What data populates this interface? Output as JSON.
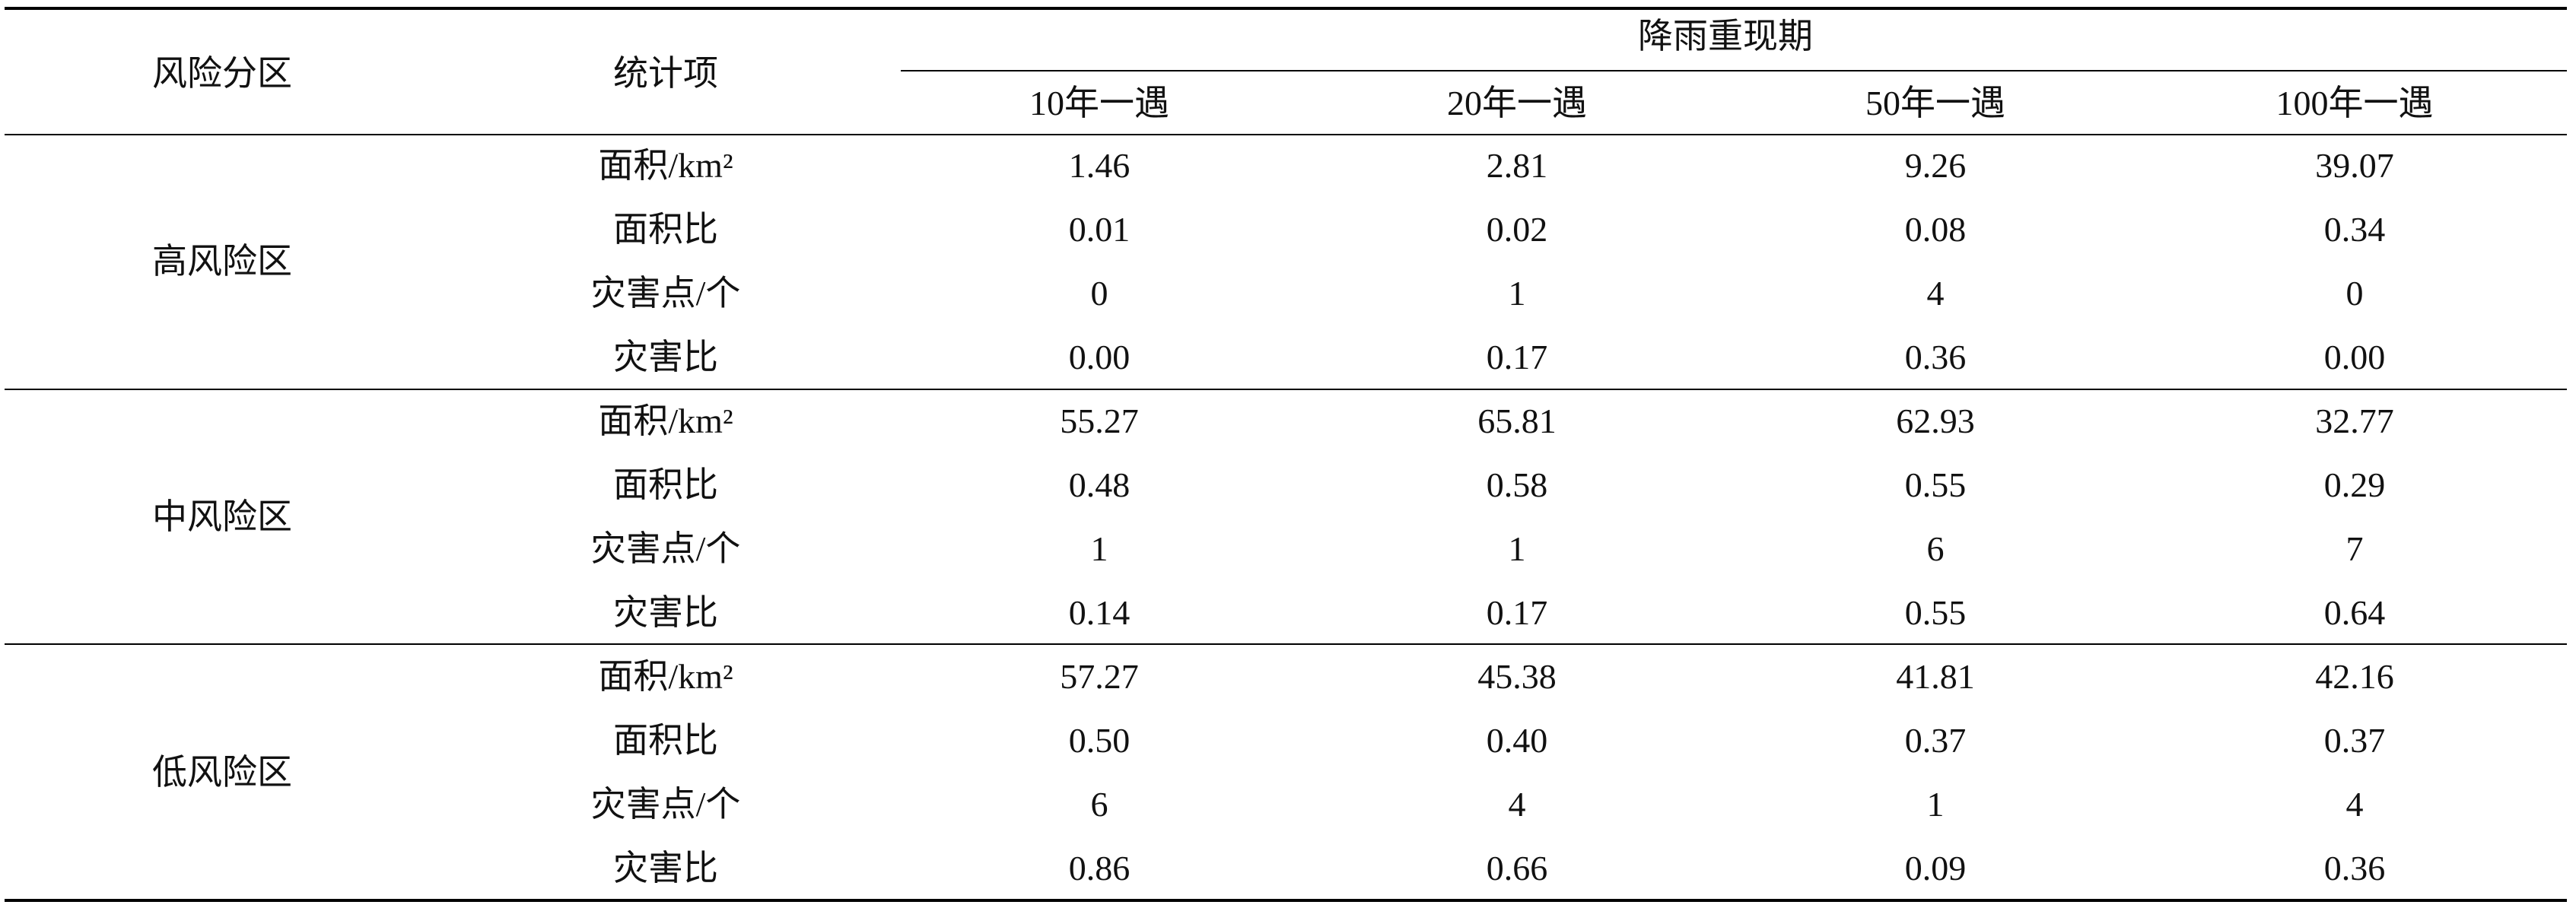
{
  "header": {
    "zone": "风险分区",
    "item": "统计项",
    "group": "降雨重现期",
    "periods": [
      "10年一遇",
      "20年一遇",
      "50年一遇",
      "100年一遇"
    ]
  },
  "table": {
    "groups": [
      {
        "zone": "高风险区",
        "rows": [
          {
            "item": "面积/km²",
            "values": [
              "1.46",
              "2.81",
              "9.26",
              "39.07"
            ]
          },
          {
            "item": "面积比",
            "values": [
              "0.01",
              "0.02",
              "0.08",
              "0.34"
            ]
          },
          {
            "item": "灾害点/个",
            "values": [
              "0",
              "1",
              "4",
              "0"
            ]
          },
          {
            "item": "灾害比",
            "values": [
              "0.00",
              "0.17",
              "0.36",
              "0.00"
            ]
          }
        ]
      },
      {
        "zone": "中风险区",
        "rows": [
          {
            "item": "面积/km²",
            "values": [
              "55.27",
              "65.81",
              "62.93",
              "32.77"
            ]
          },
          {
            "item": "面积比",
            "values": [
              "0.48",
              "0.58",
              "0.55",
              "0.29"
            ]
          },
          {
            "item": "灾害点/个",
            "values": [
              "1",
              "1",
              "6",
              "7"
            ]
          },
          {
            "item": "灾害比",
            "values": [
              "0.14",
              "0.17",
              "0.55",
              "0.64"
            ]
          }
        ]
      },
      {
        "zone": "低风险区",
        "rows": [
          {
            "item": "面积/km²",
            "values": [
              "57.27",
              "45.38",
              "41.81",
              "42.16"
            ]
          },
          {
            "item": "面积比",
            "values": [
              "0.50",
              "0.40",
              "0.37",
              "0.37"
            ]
          },
          {
            "item": "灾害点/个",
            "values": [
              "6",
              "4",
              "1",
              "4"
            ]
          },
          {
            "item": "灾害比",
            "values": [
              "0.86",
              "0.66",
              "0.09",
              "0.36"
            ]
          }
        ]
      }
    ]
  }
}
